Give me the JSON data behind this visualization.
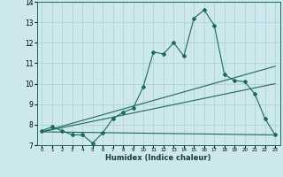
{
  "xlabel": "Humidex (Indice chaleur)",
  "bg_color": "#cce8ec",
  "grid_color": "#aacdd4",
  "line_color": "#1a6b5a",
  "xlim": [
    -0.5,
    23.5
  ],
  "ylim": [
    7,
    14
  ],
  "xticks": [
    0,
    1,
    2,
    3,
    4,
    5,
    6,
    7,
    8,
    9,
    10,
    11,
    12,
    13,
    14,
    15,
    16,
    17,
    18,
    19,
    20,
    21,
    22,
    23
  ],
  "yticks": [
    7,
    8,
    9,
    10,
    11,
    12,
    13,
    14
  ],
  "line1_x": [
    0,
    1,
    2,
    3,
    4,
    5,
    6,
    7,
    8,
    9,
    10,
    11,
    12,
    13,
    14,
    15,
    16,
    17,
    18,
    19,
    20,
    21,
    22,
    23
  ],
  "line1_y": [
    7.7,
    7.9,
    7.7,
    7.5,
    7.5,
    7.1,
    7.6,
    8.3,
    8.6,
    8.8,
    9.85,
    11.55,
    11.45,
    12.0,
    11.35,
    13.2,
    13.6,
    12.85,
    10.45,
    10.15,
    10.1,
    9.5,
    8.3,
    7.5
  ],
  "line2_x": [
    0,
    23
  ],
  "line2_y": [
    7.65,
    7.5
  ],
  "line3_x": [
    0,
    23
  ],
  "line3_y": [
    7.65,
    10.0
  ],
  "line4_x": [
    0,
    23
  ],
  "line4_y": [
    7.65,
    10.85
  ]
}
